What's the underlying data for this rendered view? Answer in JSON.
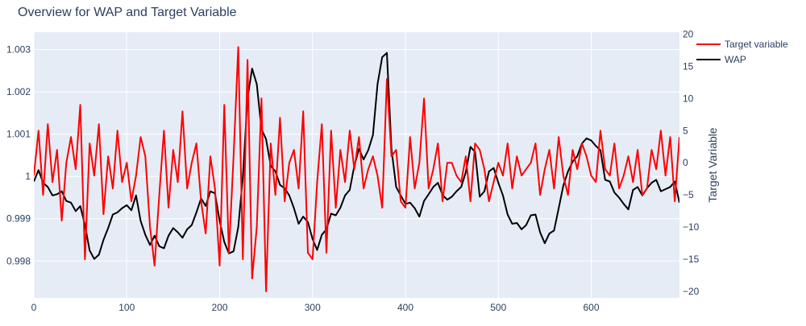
{
  "chart_data": {
    "type": "line",
    "title": "Overview for WAP and Target Variable",
    "xlabel": "",
    "ylabel": "",
    "y2label": "Target Variable",
    "xlim": [
      0,
      695
    ],
    "ylim": [
      0.99713,
      1.00341
    ],
    "y2lim": [
      -21.0,
      20.3
    ],
    "x_ticks": [
      0,
      100,
      200,
      300,
      400,
      500,
      600
    ],
    "x_tick_labels": [
      "0",
      "100",
      "200",
      "300",
      "400",
      "500",
      "600"
    ],
    "y_ticks": [
      0.998,
      0.999,
      1.0,
      1.001,
      1.002,
      1.003
    ],
    "y_tick_labels": [
      "0.998",
      "0.999",
      "1",
      "1.001",
      "1.002",
      "1.003"
    ],
    "y2_ticks": [
      -20,
      -15,
      -10,
      -5,
      0,
      5,
      10,
      15,
      20
    ],
    "y2_tick_labels": [
      "−20",
      "−15",
      "−10",
      "−5",
      "0",
      "5",
      "10",
      "15",
      "20"
    ],
    "grid": true,
    "legend_position": "top-right",
    "series": [
      {
        "name": "Target variable",
        "axis": "right",
        "color": "#ff0000",
        "x": [
          0,
          5,
          10,
          15,
          20,
          25,
          30,
          35,
          40,
          45,
          50,
          55,
          60,
          65,
          70,
          75,
          80,
          85,
          90,
          95,
          100,
          105,
          110,
          115,
          120,
          125,
          130,
          135,
          140,
          145,
          150,
          155,
          160,
          165,
          170,
          175,
          180,
          185,
          190,
          195,
          200,
          205,
          210,
          215,
          220,
          225,
          230,
          235,
          240,
          245,
          250,
          255,
          260,
          265,
          270,
          275,
          280,
          285,
          290,
          295,
          300,
          305,
          310,
          315,
          320,
          325,
          330,
          335,
          340,
          345,
          350,
          355,
          360,
          365,
          370,
          375,
          380,
          385,
          390,
          395,
          400,
          405,
          410,
          415,
          420,
          425,
          430,
          435,
          440,
          445,
          450,
          455,
          460,
          465,
          470,
          475,
          480,
          485,
          490,
          495,
          500,
          505,
          510,
          515,
          520,
          525,
          530,
          535,
          540,
          545,
          550,
          555,
          560,
          565,
          570,
          575,
          580,
          585,
          590,
          595,
          600,
          605,
          610,
          615,
          620,
          625,
          630,
          635,
          640,
          645,
          650,
          655,
          660,
          665,
          670,
          675,
          680,
          685,
          690,
          695
        ],
        "values": [
          -2,
          5,
          -5,
          6,
          -3,
          2,
          -9,
          0,
          4,
          -1,
          9,
          -15,
          3,
          -2,
          6,
          -8,
          1,
          -4,
          5,
          -3,
          0,
          -6,
          -2,
          4,
          1,
          -10,
          -16,
          -5,
          5,
          -7,
          2,
          -3,
          8,
          -4,
          0,
          3,
          -6,
          -11,
          1,
          -4,
          -16,
          9,
          -14,
          1,
          18,
          -15,
          16,
          -18,
          -10,
          10,
          -20,
          3,
          -5,
          7,
          -6,
          0,
          2,
          -4,
          8,
          -14,
          -15,
          -3,
          6,
          -14,
          5,
          -7,
          2,
          -3,
          5,
          -1,
          4,
          -4,
          -1,
          1,
          -2,
          -7,
          13,
          1,
          2,
          -6,
          -7,
          4,
          -4,
          0,
          10,
          -4,
          -1,
          3,
          -6,
          0,
          0,
          -2,
          -3,
          1,
          -6,
          3,
          2,
          -1,
          -6,
          -3,
          0,
          -2,
          3,
          -4,
          1,
          -2,
          -1,
          0,
          3,
          -5,
          -1,
          2,
          -4,
          4,
          -2,
          -5,
          2,
          -1,
          3,
          1,
          -2,
          -3,
          5,
          -1,
          -2,
          3,
          -4,
          -2,
          1,
          -3,
          2,
          -5,
          -4,
          2,
          -1,
          5,
          -2,
          4,
          -6,
          4
        ]
      },
      {
        "name": "WAP",
        "axis": "left",
        "color": "#000000",
        "x": [
          0,
          5,
          10,
          15,
          20,
          25,
          30,
          35,
          40,
          45,
          50,
          55,
          60,
          65,
          70,
          75,
          80,
          85,
          90,
          95,
          100,
          105,
          110,
          115,
          120,
          125,
          130,
          135,
          140,
          145,
          150,
          155,
          160,
          165,
          170,
          175,
          180,
          185,
          190,
          195,
          200,
          205,
          210,
          215,
          220,
          225,
          230,
          235,
          240,
          245,
          250,
          255,
          260,
          265,
          270,
          275,
          280,
          285,
          290,
          295,
          300,
          305,
          310,
          315,
          320,
          325,
          330,
          335,
          340,
          345,
          350,
          355,
          360,
          365,
          370,
          375,
          380,
          385,
          390,
          395,
          400,
          405,
          410,
          415,
          420,
          425,
          430,
          435,
          440,
          445,
          450,
          455,
          460,
          465,
          470,
          475,
          480,
          485,
          490,
          495,
          500,
          505,
          510,
          515,
          520,
          525,
          530,
          535,
          540,
          545,
          550,
          555,
          560,
          565,
          570,
          575,
          580,
          585,
          590,
          595,
          600,
          605,
          610,
          615,
          620,
          625,
          630,
          635,
          640,
          645,
          650,
          655,
          660,
          665,
          670,
          675,
          680,
          685,
          690,
          695
        ],
        "values": [
          0.99988,
          1.00015,
          0.99985,
          0.99975,
          0.99955,
          0.99958,
          0.99965,
          0.99942,
          0.99938,
          0.99918,
          0.9993,
          0.99885,
          0.99825,
          0.99805,
          0.99815,
          0.9985,
          0.99878,
          0.9991,
          0.99915,
          0.99925,
          0.99932,
          0.9992,
          0.99955,
          0.99895,
          0.99862,
          0.99838,
          0.9986,
          0.99835,
          0.9983,
          0.9986,
          0.99878,
          0.99868,
          0.99855,
          0.99875,
          0.99885,
          0.99915,
          0.99948,
          0.9993,
          0.99965,
          0.9996,
          0.99895,
          0.99845,
          0.99818,
          0.99823,
          0.9988,
          0.99998,
          1.00185,
          1.00255,
          1.00218,
          1.00112,
          1.00088,
          1.00025,
          1.00012,
          0.9998,
          0.99972,
          0.99955,
          0.99925,
          0.99888,
          0.99905,
          0.99892,
          0.99852,
          0.99826,
          0.99862,
          0.99875,
          0.99912,
          0.99908,
          0.99926,
          0.99955,
          0.99968,
          1.00025,
          1.00065,
          1.0004,
          1.00062,
          1.00098,
          1.00218,
          1.00282,
          1.00292,
          1.00065,
          0.99975,
          0.99955,
          0.99935,
          0.99938,
          0.99925,
          0.99905,
          0.99942,
          0.99958,
          0.99975,
          0.99985,
          0.99956,
          0.99945,
          0.99952,
          0.99965,
          0.99975,
          1.0001,
          1.0007,
          1.00058,
          0.99952,
          0.99965,
          1.00012,
          1.0002,
          0.99985,
          0.99955,
          0.9991,
          0.99888,
          0.9989,
          0.99875,
          0.99885,
          0.99908,
          0.9991,
          0.99868,
          0.99842,
          0.99865,
          0.99872,
          0.99925,
          0.99978,
          1.00012,
          1.00035,
          1.00048,
          1.00078,
          1.0009,
          1.00085,
          1.00072,
          1.00062,
          0.99992,
          0.99988,
          0.99962,
          0.9995,
          0.99935,
          0.99922,
          0.99968,
          0.99975,
          0.99955,
          0.99972,
          0.99985,
          0.99992,
          0.99965,
          0.9997,
          0.99975,
          0.99988,
          0.99938
        ]
      }
    ]
  }
}
